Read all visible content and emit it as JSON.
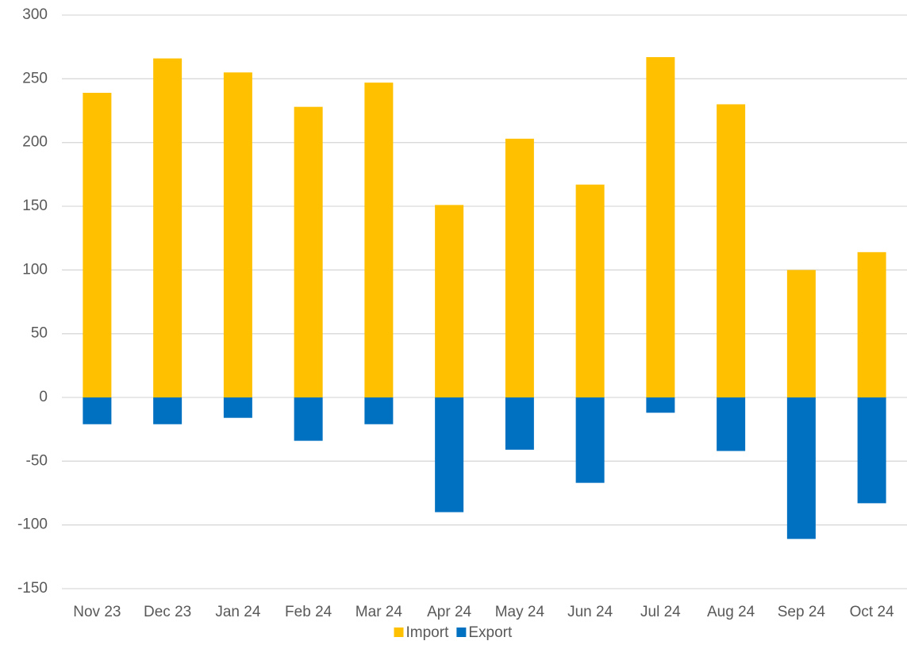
{
  "chart_data": {
    "type": "bar",
    "stacked": true,
    "categories": [
      "Nov 23",
      "Dec 23",
      "Jan 24",
      "Feb 24",
      "Mar 24",
      "Apr 24",
      "May 24",
      "Jun 24",
      "Jul 24",
      "Aug 24",
      "Sep 24",
      "Oct 24"
    ],
    "series": [
      {
        "name": "Import",
        "color": "#FFC000",
        "values": [
          239,
          266,
          255,
          228,
          247,
          151,
          203,
          167,
          267,
          230,
          100,
          114
        ]
      },
      {
        "name": "Export",
        "color": "#0070C0",
        "values": [
          -21,
          -21,
          -16,
          -34,
          -21,
          -90,
          -41,
          -67,
          -12,
          -42,
          -111,
          -83
        ]
      }
    ],
    "ylim": [
      -150,
      300
    ],
    "yticks": [
      -150,
      -100,
      -50,
      0,
      50,
      100,
      150,
      200,
      250,
      300
    ],
    "grid": true,
    "legend": "bottom"
  }
}
